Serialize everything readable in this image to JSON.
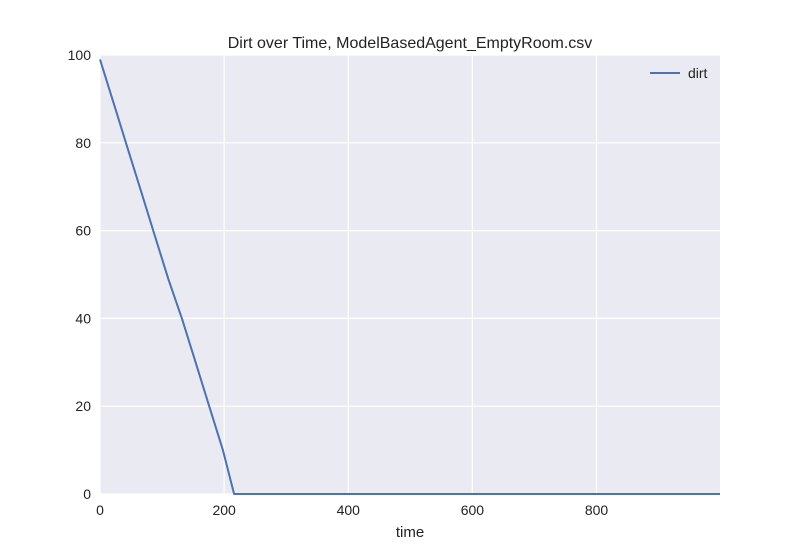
{
  "chart_data": {
    "type": "line",
    "title": "Dirt over Time, ModelBasedAgent_EmptyRoom.csv",
    "xlabel": "time",
    "ylabel": "",
    "xlim": [
      0,
      999
    ],
    "ylim": [
      0,
      100
    ],
    "xticks": [
      0,
      200,
      400,
      600,
      800
    ],
    "yticks": [
      0,
      20,
      40,
      60,
      80,
      100
    ],
    "grid": true,
    "legend_position": "top-right",
    "background_color": "#EAEAF2",
    "grid_color": "#FFFFFF",
    "series": [
      {
        "name": "dirt",
        "color": "#4C72B0",
        "x": [
          0,
          22,
          44,
          66,
          88,
          110,
          132,
          154,
          176,
          198,
          216,
          999
        ],
        "y": [
          99,
          89,
          79,
          69,
          59,
          49,
          40,
          30,
          20,
          10,
          0,
          0
        ]
      }
    ]
  }
}
